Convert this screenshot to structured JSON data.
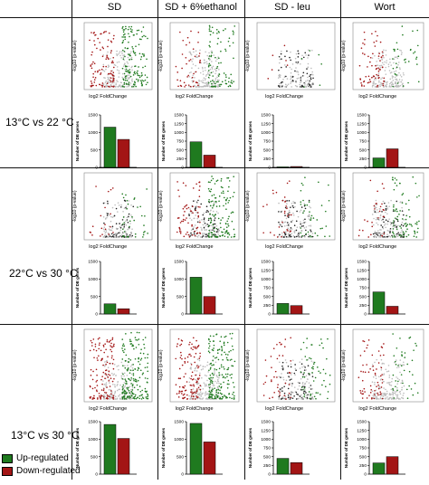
{
  "columns": [
    "SD",
    "SD + 6%ethanol",
    "SD - leu",
    "Wort"
  ],
  "rows": [
    "13°C vs 22 °C",
    "22°C vs 30 °C",
    "13°C vs 30 °C"
  ],
  "volcano_xlabel": "log2 FoldChange",
  "volcano_ylabel": "-log10 (p-value)",
  "bar_ylabel": "Number of DE genes",
  "legend": {
    "up_label": "Up-regulated",
    "down_label": "Down-regulated"
  },
  "colors": {
    "up": "#1f7a1f",
    "down": "#a31515",
    "ns": "#bdbdbd",
    "ns_dark": "#222222"
  },
  "chart_data": [
    {
      "type": "bar",
      "row": "13°C vs 22 °C",
      "column": "SD",
      "series": [
        {
          "name": "Up-regulated",
          "values": [
            1150
          ]
        },
        {
          "name": "Down-regulated",
          "values": [
            800
          ]
        }
      ],
      "ylim": [
        0,
        1500
      ],
      "yticks": [
        0,
        500,
        1000,
        1500
      ],
      "ylabel": "Number of DE genes"
    },
    {
      "type": "bar",
      "row": "13°C vs 22 °C",
      "column": "SD + 6%ethanol",
      "series": [
        {
          "name": "Up-regulated",
          "values": [
            730
          ]
        },
        {
          "name": "Down-regulated",
          "values": [
            350
          ]
        }
      ],
      "ylim": [
        0,
        1500
      ],
      "yticks": [
        0,
        250,
        500,
        750,
        1000,
        1250,
        1500
      ],
      "ylabel": "Number of DE genes"
    },
    {
      "type": "bar",
      "row": "13°C vs 22 °C",
      "column": "SD - leu",
      "series": [
        {
          "name": "Up-regulated",
          "values": [
            15
          ]
        },
        {
          "name": "Down-regulated",
          "values": [
            25
          ]
        }
      ],
      "ylim": [
        0,
        1500
      ],
      "yticks": [
        0,
        250,
        500,
        750,
        1000,
        1250,
        1500
      ],
      "ylabel": "Number of DE genes"
    },
    {
      "type": "bar",
      "row": "13°C vs 22 °C",
      "column": "Wort",
      "series": [
        {
          "name": "Up-regulated",
          "values": [
            270
          ]
        },
        {
          "name": "Down-regulated",
          "values": [
            530
          ]
        }
      ],
      "ylim": [
        0,
        1500
      ],
      "yticks": [
        0,
        250,
        500,
        750,
        1000,
        1250,
        1500
      ],
      "ylabel": "Number of DE genes"
    },
    {
      "type": "bar",
      "row": "22°C vs 30 °C",
      "column": "SD",
      "series": [
        {
          "name": "Up-regulated",
          "values": [
            290
          ]
        },
        {
          "name": "Down-regulated",
          "values": [
            150
          ]
        }
      ],
      "ylim": [
        0,
        1500
      ],
      "yticks": [
        0,
        500,
        1000,
        1500
      ],
      "ylabel": "Number of DE genes"
    },
    {
      "type": "bar",
      "row": "22°C vs 30 °C",
      "column": "SD + 6%ethanol",
      "series": [
        {
          "name": "Up-regulated",
          "values": [
            1050
          ]
        },
        {
          "name": "Down-regulated",
          "values": [
            500
          ]
        }
      ],
      "ylim": [
        0,
        1500
      ],
      "yticks": [
        0,
        500,
        1000,
        1500
      ],
      "ylabel": "Number of DE genes"
    },
    {
      "type": "bar",
      "row": "22°C vs 30 °C",
      "column": "SD - leu",
      "series": [
        {
          "name": "Up-regulated",
          "values": [
            300
          ]
        },
        {
          "name": "Down-regulated",
          "values": [
            240
          ]
        }
      ],
      "ylim": [
        0,
        1500
      ],
      "yticks": [
        0,
        250,
        500,
        750,
        1000,
        1250,
        1500
      ],
      "ylabel": "Number of DE genes"
    },
    {
      "type": "bar",
      "row": "22°C vs 30 °C",
      "column": "Wort",
      "series": [
        {
          "name": "Up-regulated",
          "values": [
            630
          ]
        },
        {
          "name": "Down-regulated",
          "values": [
            220
          ]
        }
      ],
      "ylim": [
        0,
        1500
      ],
      "yticks": [
        0,
        250,
        500,
        750,
        1000,
        1250,
        1500
      ],
      "ylabel": "Number of DE genes"
    },
    {
      "type": "bar",
      "row": "13°C vs 30 °C",
      "column": "SD",
      "series": [
        {
          "name": "Up-regulated",
          "values": [
            1420
          ]
        },
        {
          "name": "Down-regulated",
          "values": [
            1020
          ]
        }
      ],
      "ylim": [
        0,
        1500
      ],
      "yticks": [
        0,
        500,
        1000,
        1500
      ],
      "ylabel": "Number of DE genes"
    },
    {
      "type": "bar",
      "row": "13°C vs 30 °C",
      "column": "SD + 6%ethanol",
      "series": [
        {
          "name": "Up-regulated",
          "values": [
            1450
          ]
        },
        {
          "name": "Down-regulated",
          "values": [
            920
          ]
        }
      ],
      "ylim": [
        0,
        1500
      ],
      "yticks": [
        0,
        500,
        1000,
        1500
      ],
      "ylabel": "Number of DE genes"
    },
    {
      "type": "bar",
      "row": "13°C vs 30 °C",
      "column": "SD - leu",
      "series": [
        {
          "name": "Up-regulated",
          "values": [
            450
          ]
        },
        {
          "name": "Down-regulated",
          "values": [
            330
          ]
        }
      ],
      "ylim": [
        0,
        1500
      ],
      "yticks": [
        0,
        250,
        500,
        750,
        1000,
        1250,
        1500
      ],
      "ylabel": "Number of DE genes"
    },
    {
      "type": "bar",
      "row": "13°C vs 30 °C",
      "column": "Wort",
      "series": [
        {
          "name": "Up-regulated",
          "values": [
            320
          ]
        },
        {
          "name": "Down-regulated",
          "values": [
            500
          ]
        }
      ],
      "ylim": [
        0,
        1500
      ],
      "yticks": [
        0,
        250,
        500,
        750,
        1000,
        1250,
        1500
      ],
      "ylabel": "Number of DE genes"
    }
  ]
}
